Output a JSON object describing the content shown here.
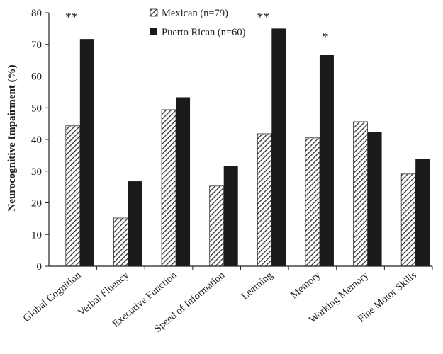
{
  "chart_data": {
    "type": "bar",
    "title": "",
    "xlabel": "",
    "ylabel": "Neurocognitive Impairment (%)",
    "ylim": [
      0,
      80
    ],
    "yticks": [
      0,
      10,
      20,
      30,
      40,
      50,
      60,
      70,
      80
    ],
    "grid": false,
    "legend_position": "top-center",
    "categories": [
      "Global Cognition",
      "Verbal Fluency",
      "Executive Function",
      "Speed of Information",
      "Learning",
      "Memory",
      "Working Memory",
      "Fine Motor Skills"
    ],
    "series": [
      {
        "name": "Mexican (n=79)",
        "pattern": "hatched",
        "color": "#333333",
        "values": [
          44.3,
          15.2,
          49.4,
          25.3,
          41.8,
          40.5,
          45.6,
          29.1
        ]
      },
      {
        "name": "Puerto Rican (n=60)",
        "pattern": "solid",
        "color": "#1a1a1a",
        "values": [
          71.7,
          26.8,
          53.3,
          31.7,
          75.0,
          66.7,
          42.3,
          33.9
        ]
      }
    ],
    "annotations": [
      {
        "category": "Global Cognition",
        "text": "**"
      },
      {
        "category": "Learning",
        "text": "**"
      },
      {
        "category": "Memory",
        "text": "*"
      }
    ]
  }
}
